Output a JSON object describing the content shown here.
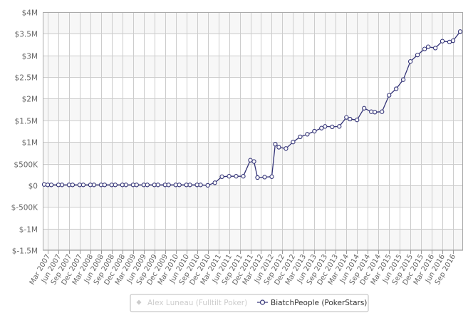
{
  "chart_data": {
    "type": "line",
    "title": "",
    "xlabel": "",
    "ylabel": "",
    "y_ticks": [
      "$4M",
      "$3.5M",
      "$3M",
      "$2.5M",
      "$2M",
      "$1.5M",
      "$1M",
      "$500K",
      "$0",
      "$-500K",
      "$-1M",
      "$-1.5M"
    ],
    "ylim": [
      -1500000,
      4000000
    ],
    "x_ticks": [
      "Mar 2007",
      "Jun 2007",
      "Sep 2007",
      "Dec 2007",
      "Mar 2008",
      "Jun 2008",
      "Sep 2008",
      "Dec 2008",
      "Mar 2009",
      "Jun 2009",
      "Sep 2009",
      "Dec 2009",
      "Mar 2010",
      "Jun 2010",
      "Sep 2010",
      "Dec 2010",
      "Mar 2011",
      "Jun 2011",
      "Sep 2011",
      "Dec 2011",
      "Mar 2012",
      "Jun 2012",
      "Sep 2012",
      "Dec 2012",
      "Mar 2013",
      "Jun 2013",
      "Sep 2013",
      "Dec 2013",
      "Mar 2014",
      "Jun 2014",
      "Sep 2014",
      "Dec 2014",
      "Mar 2015",
      "Jun 2015",
      "Sep 2015",
      "Dec 2015",
      "Mar 2016",
      "Jun 2016",
      "Sep 2016"
    ],
    "grid": true,
    "legend_position": "bottom-center",
    "colors": {
      "series": "#333377",
      "series_hidden": "#cccccc",
      "band": "#f7f7f7",
      "grid": "#cccccc",
      "axis_text": "#666666"
    },
    "series": [
      {
        "name": "Alex Luneau (Fulltilt Poker)",
        "hidden": true,
        "x": [],
        "values": []
      },
      {
        "name": "BiatchPeople (PokerStars)",
        "hidden": false,
        "x": [
          "Feb 2007",
          "Mar 2007",
          "Apr 2007",
          "Jun 2007",
          "Jul 2007",
          "Sep 2007",
          "Oct 2007",
          "Dec 2007",
          "Jan 2008",
          "Mar 2008",
          "Apr 2008",
          "Jun 2008",
          "Jul 2008",
          "Sep 2008",
          "Oct 2008",
          "Dec 2008",
          "Jan 2009",
          "Mar 2009",
          "Apr 2009",
          "Jun 2009",
          "Jul 2009",
          "Sep 2009",
          "Oct 2009",
          "Dec 2009",
          "Jan 2010",
          "Mar 2010",
          "Apr 2010",
          "Jun 2010",
          "Jul 2010",
          "Sep 2010",
          "Oct 2010",
          "Dec 2010",
          "Feb 2011",
          "Apr 2011",
          "Jun 2011",
          "Aug 2011",
          "Oct 2011",
          "Dec 2011",
          "Jan 2012",
          "Feb 2012",
          "Apr 2012",
          "Jun 2012",
          "Jul 2012",
          "Aug 2012",
          "Oct 2012",
          "Dec 2012",
          "Feb 2013",
          "Apr 2013",
          "Jun 2013",
          "Aug 2013",
          "Sep 2013",
          "Nov 2013",
          "Jan 2014",
          "Mar 2014",
          "Apr 2014",
          "Jun 2014",
          "Aug 2014",
          "Oct 2014",
          "Nov 2014",
          "Jan 2015",
          "Mar 2015",
          "May 2015",
          "Jul 2015",
          "Sep 2015",
          "Nov 2015",
          "Jan 2016",
          "Feb 2016",
          "Apr 2016",
          "Jun 2016",
          "Aug 2016",
          "Sep 2016",
          "Nov 2016"
        ],
        "values": [
          20000,
          10000,
          10000,
          10000,
          10000,
          10000,
          10000,
          10000,
          10000,
          10000,
          10000,
          10000,
          10000,
          10000,
          10000,
          10000,
          10000,
          10000,
          10000,
          10000,
          10000,
          10000,
          10000,
          10000,
          10000,
          10000,
          10000,
          10000,
          10000,
          10000,
          10000,
          0,
          60000,
          200000,
          210000,
          210000,
          210000,
          580000,
          550000,
          180000,
          190000,
          200000,
          950000,
          880000,
          850000,
          1000000,
          1120000,
          1180000,
          1250000,
          1320000,
          1360000,
          1350000,
          1360000,
          1570000,
          1530000,
          1510000,
          1780000,
          1700000,
          1690000,
          1700000,
          2080000,
          2230000,
          2440000,
          2860000,
          3010000,
          3150000,
          3200000,
          3170000,
          3330000,
          3310000,
          3340000,
          3550000
        ]
      }
    ]
  }
}
